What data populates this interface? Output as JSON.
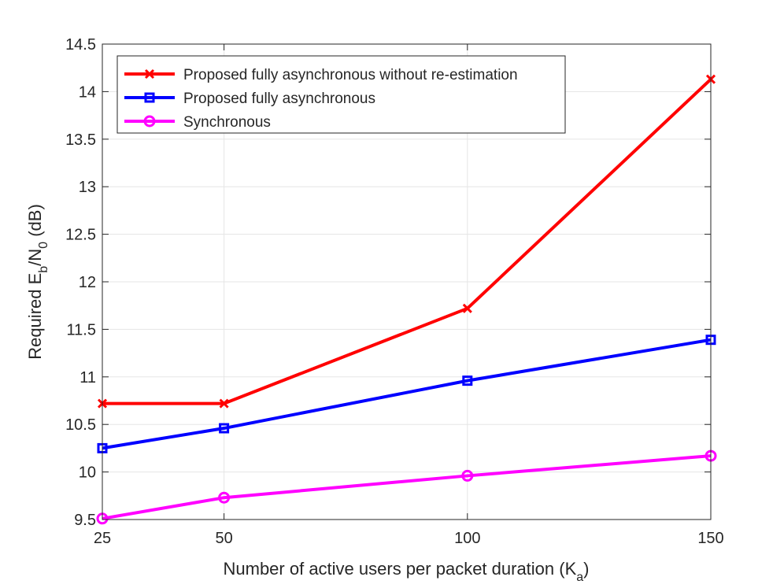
{
  "chart_data": {
    "type": "line",
    "x": [
      25,
      50,
      100,
      150
    ],
    "xlim": [
      25,
      150
    ],
    "ylim": [
      9.5,
      14.5
    ],
    "xticks": [
      25,
      50,
      100,
      150
    ],
    "yticks": [
      9.5,
      10,
      10.5,
      11,
      11.5,
      12,
      12.5,
      13,
      13.5,
      14,
      14.5
    ],
    "xtick_labels": [
      "25",
      "50",
      "100",
      "150"
    ],
    "ytick_labels": [
      "9.5",
      "10",
      "10.5",
      "11",
      "11.5",
      "12",
      "12.5",
      "13",
      "13.5",
      "14",
      "14.5"
    ],
    "xlabel": "Number of active users per packet duration (K",
    "xlabel_sub": "a",
    "xlabel_end": ")",
    "ylabel": "Required E",
    "ylabel_sub1": "b",
    "ylabel_mid": "/N",
    "ylabel_sub2": "0",
    "ylabel_end": " (dB)",
    "grid": true,
    "legend_position": "top-left",
    "series": [
      {
        "name": "Proposed fully asynchronous without re-estimation",
        "values": [
          10.72,
          10.72,
          11.72,
          14.13
        ],
        "color": "#ff0000",
        "marker": "x"
      },
      {
        "name": "Proposed fully asynchronous",
        "values": [
          10.25,
          10.46,
          10.96,
          11.39
        ],
        "color": "#0000ff",
        "marker": "square"
      },
      {
        "name": "Synchronous",
        "values": [
          9.51,
          9.73,
          9.96,
          10.17
        ],
        "color": "#ff00ff",
        "marker": "circle"
      }
    ]
  }
}
